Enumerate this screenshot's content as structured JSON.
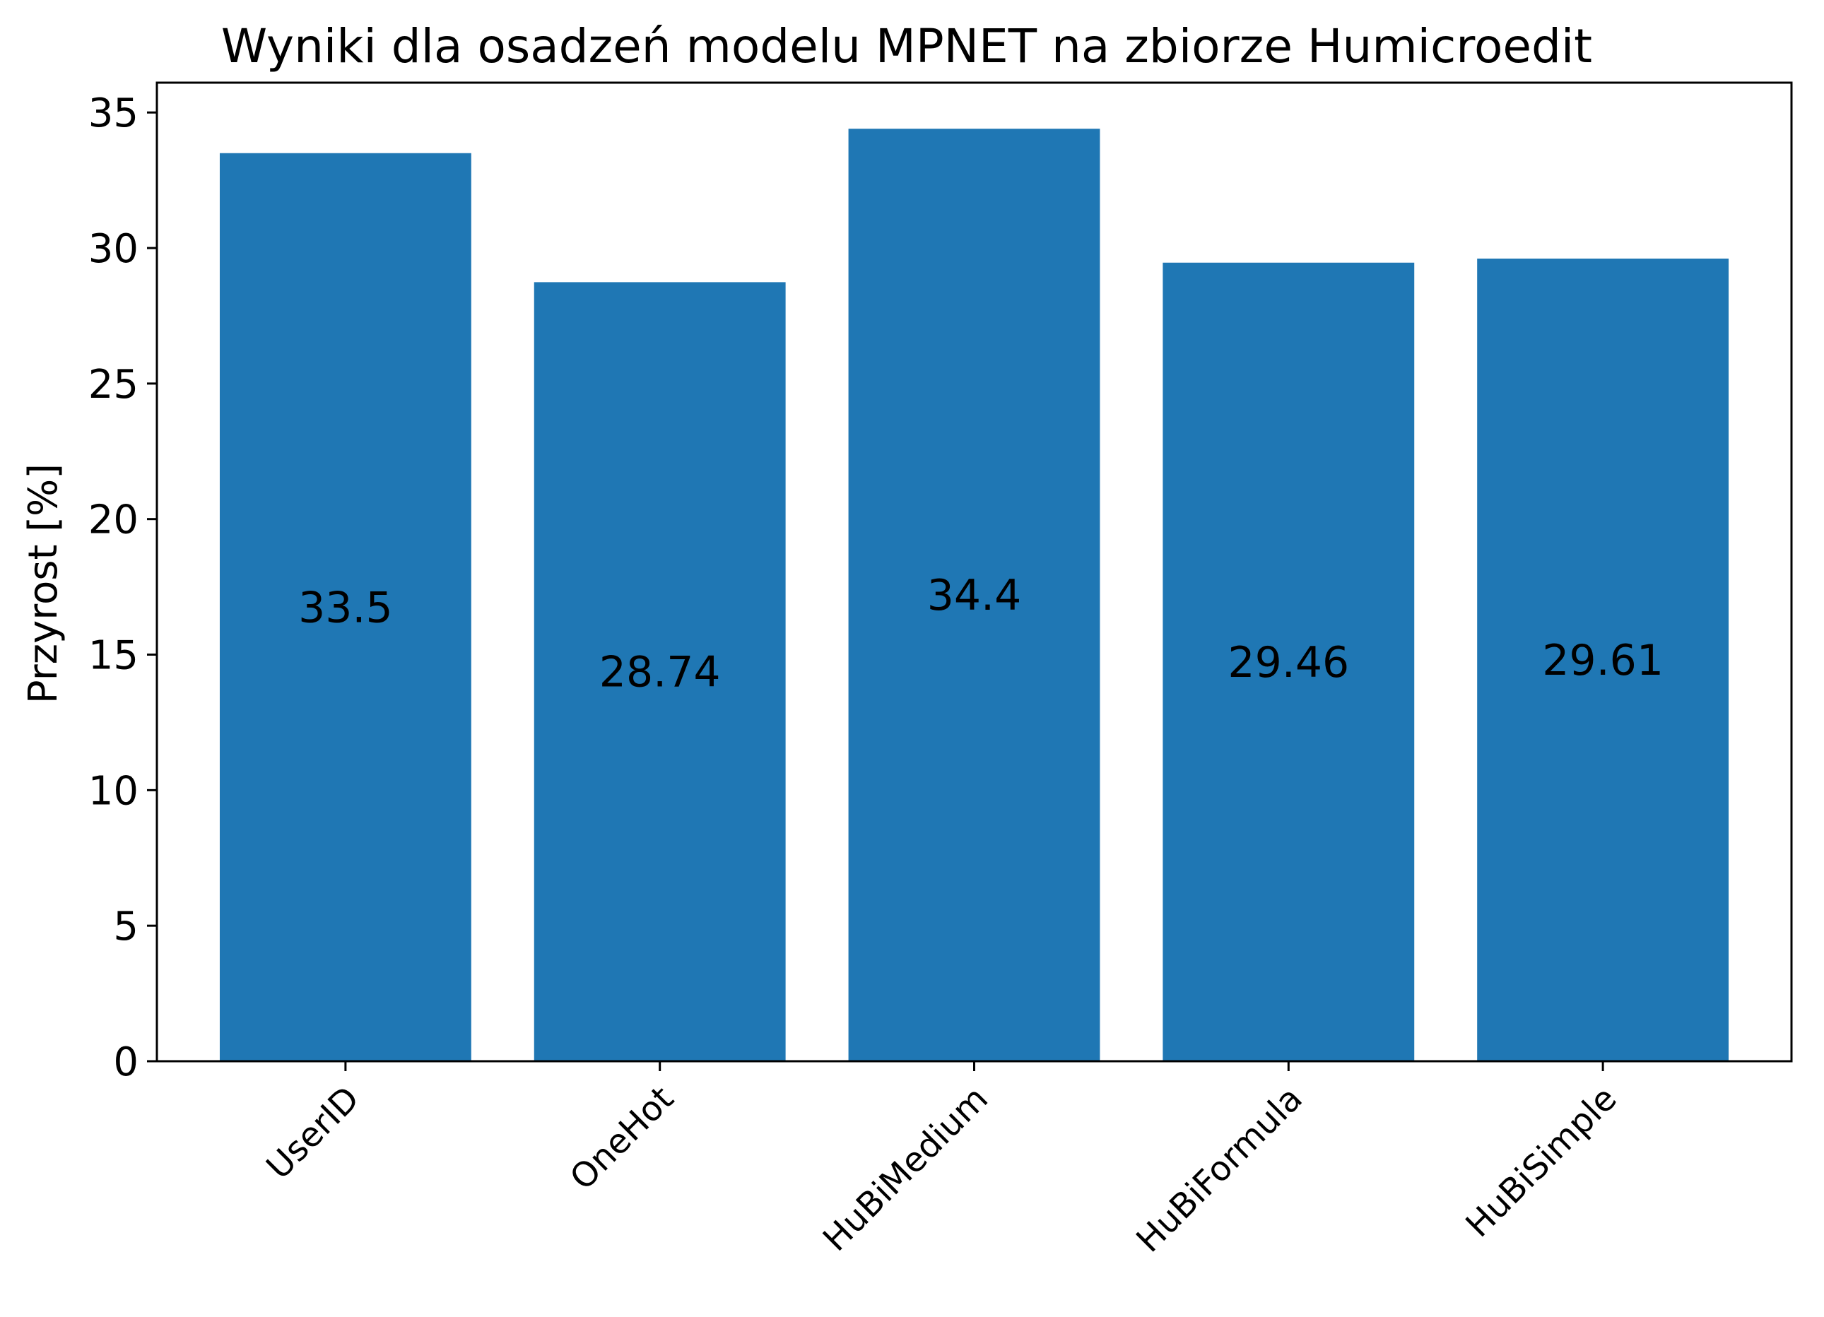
{
  "chart_data": {
    "type": "bar",
    "title": "Wyniki dla osadzeń modelu MPNET na zbiorze Humicroedit",
    "xlabel": "",
    "ylabel": "Przyrost [%]",
    "categories": [
      "UserID",
      "OneHot",
      "HuBiMedium",
      "HuBiFormula",
      "HuBiSimple"
    ],
    "values": [
      33.5,
      28.74,
      34.4,
      29.46,
      29.61
    ],
    "value_labels": [
      "33.5",
      "28.74",
      "34.4",
      "29.46",
      "29.61"
    ],
    "ylim": [
      0,
      36.1
    ],
    "yticks": [
      0,
      5,
      10,
      15,
      20,
      25,
      30,
      35
    ],
    "bar_color": "#1f77b4",
    "grid": false,
    "legend": null,
    "xtick_rotation": 45
  }
}
